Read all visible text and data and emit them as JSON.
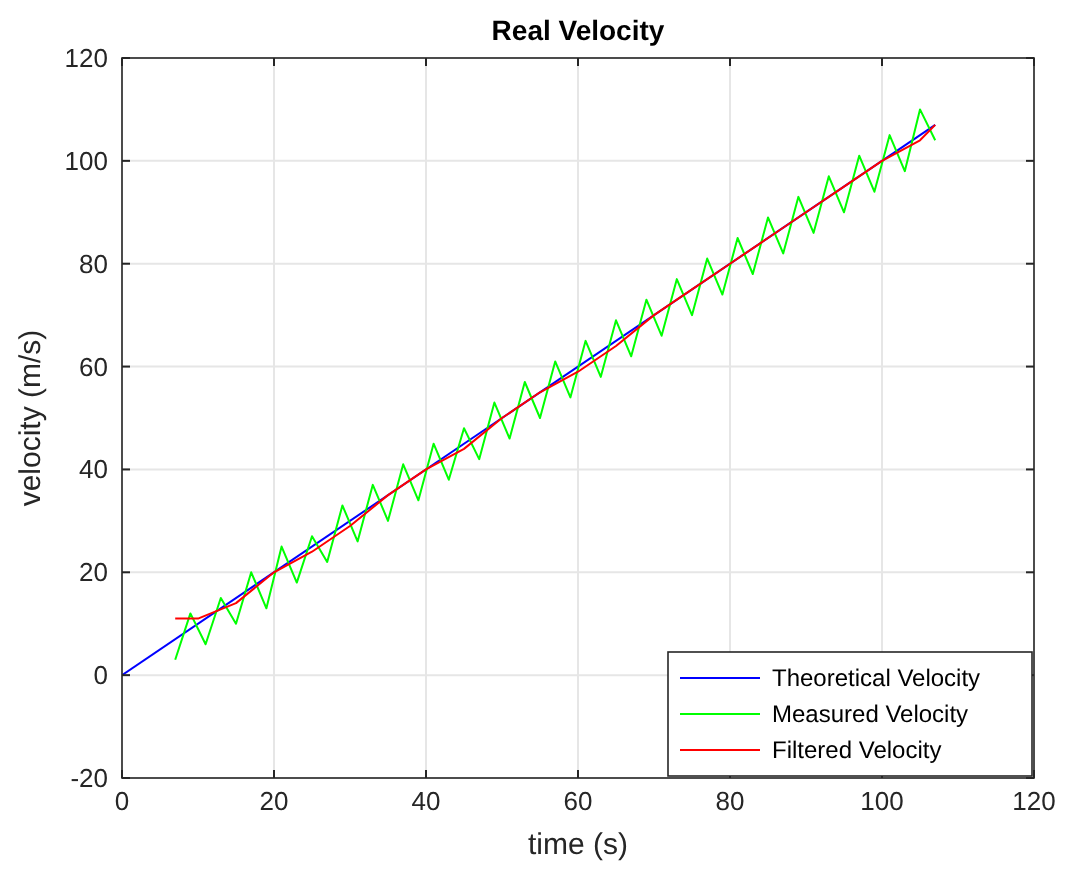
{
  "chart_data": {
    "type": "line",
    "title": "Real Velocity",
    "xlabel": "time (s)",
    "ylabel": "velocity (m/s)",
    "xlim": [
      0,
      120
    ],
    "xticks": [
      0,
      20,
      40,
      60,
      80,
      100,
      120
    ],
    "ylim": [
      -20,
      120
    ],
    "yticks": [
      -20,
      0,
      20,
      40,
      60,
      80,
      100,
      120
    ],
    "grid": true,
    "legend": "bottom right",
    "line_style": "solid",
    "marker": "none",
    "series": [
      {
        "name": "Theoretical Velocity",
        "color": "#0000ff",
        "x": [
          0,
          107
        ],
        "values": [
          0,
          107
        ]
      },
      {
        "name": "Measured Velocity",
        "color": "#00ff00",
        "x": [
          7,
          9,
          11,
          13,
          15,
          17,
          19,
          21,
          23,
          25,
          27,
          29,
          31,
          33,
          35,
          37,
          39,
          41,
          43,
          45,
          47,
          49,
          51,
          53,
          55,
          57,
          59,
          61,
          63,
          65,
          67,
          69,
          71,
          73,
          75,
          77,
          79,
          81,
          83,
          85,
          87,
          89,
          91,
          93,
          95,
          97,
          99,
          101,
          103,
          105,
          107
        ],
        "values": [
          3,
          12,
          6,
          15,
          10,
          20,
          13,
          25,
          18,
          27,
          22,
          33,
          26,
          37,
          30,
          41,
          34,
          45,
          38,
          48,
          42,
          53,
          46,
          57,
          50,
          61,
          54,
          65,
          58,
          69,
          62,
          73,
          66,
          77,
          70,
          81,
          74,
          85,
          78,
          89,
          82,
          93,
          86,
          97,
          90,
          101,
          94,
          105,
          98,
          110,
          104
        ]
      },
      {
        "name": "Filtered Velocity",
        "color": "#ff0000",
        "x": [
          7,
          8,
          10,
          15,
          20,
          25,
          30,
          35,
          40,
          45,
          50,
          55,
          60,
          65,
          70,
          75,
          80,
          85,
          90,
          95,
          100,
          105,
          107
        ],
        "values": [
          11,
          11,
          11,
          14,
          20,
          24,
          29,
          35,
          40,
          44,
          50,
          55,
          59,
          64,
          70,
          75,
          80,
          85,
          90,
          95,
          100,
          104,
          107
        ]
      }
    ]
  }
}
